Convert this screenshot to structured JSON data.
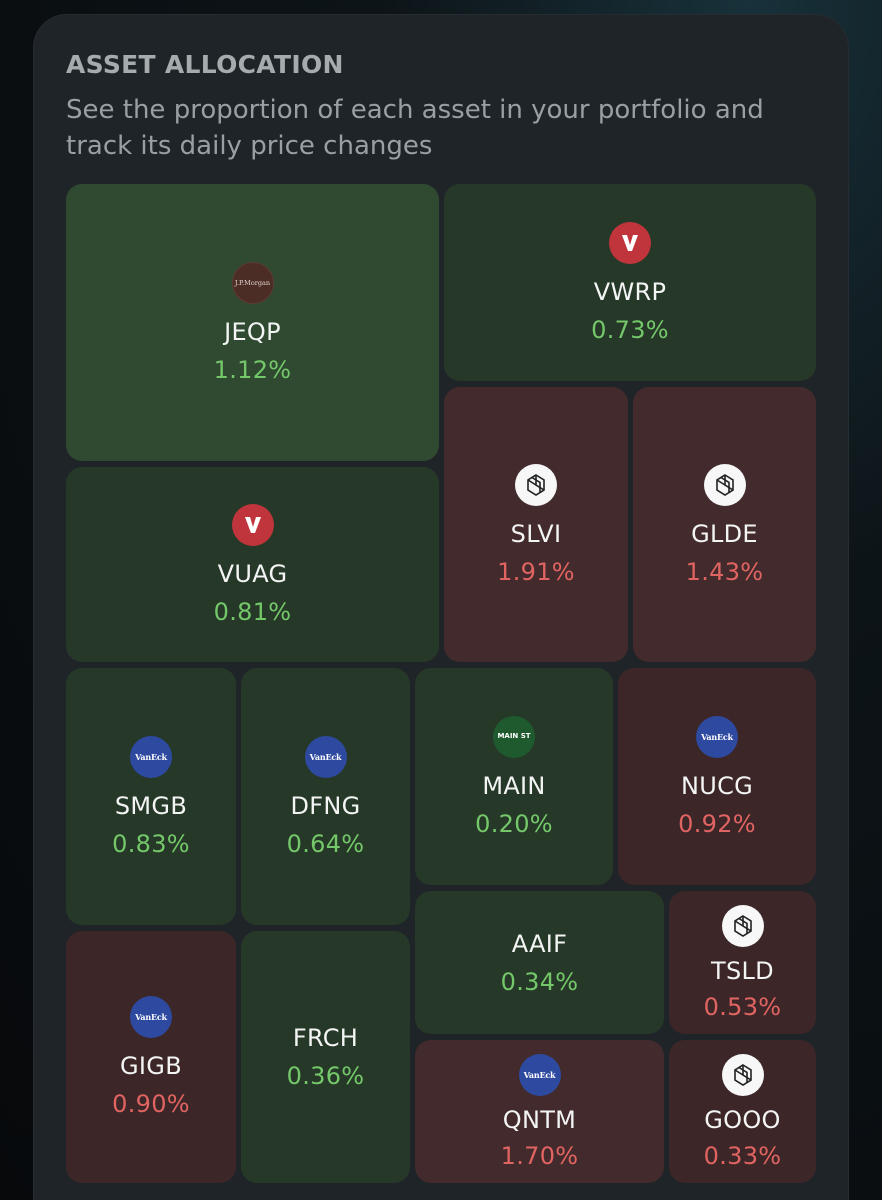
{
  "header": {
    "title": "ASSET ALLOCATION",
    "subtitle": "See the proportion of each asset in your portfolio and track its daily price changes"
  },
  "assets": {
    "jeqp": {
      "ticker": "JEQP",
      "change": "1.12%",
      "logo": "jpmorgan-logo",
      "logo_text": "J.P.Morgan"
    },
    "vwrp": {
      "ticker": "VWRP",
      "change": "0.73%",
      "logo": "vanguard-logo"
    },
    "vuag": {
      "ticker": "VUAG",
      "change": "0.81%",
      "logo": "vanguard-logo"
    },
    "slvi": {
      "ticker": "SLVI",
      "change": "1.91%",
      "logo": "ishares-logo"
    },
    "glde": {
      "ticker": "GLDE",
      "change": "1.43%",
      "logo": "ishares-logo"
    },
    "smgb": {
      "ticker": "SMGB",
      "change": "0.83%",
      "logo": "vaneck-logo",
      "logo_text": "VanEck"
    },
    "dfng": {
      "ticker": "DFNG",
      "change": "0.64%",
      "logo": "vaneck-logo",
      "logo_text": "VanEck"
    },
    "main": {
      "ticker": "MAIN",
      "change": "0.20%",
      "logo": "mainst-logo",
      "logo_text": "MAIN ST"
    },
    "nucg": {
      "ticker": "NUCG",
      "change": "0.92%",
      "logo": "vaneck-logo",
      "logo_text": "VanEck"
    },
    "aaif": {
      "ticker": "AAIF",
      "change": "0.34%"
    },
    "tsld": {
      "ticker": "TSLD",
      "change": "0.53%",
      "logo": "leverage-shares-logo"
    },
    "gigb": {
      "ticker": "GIGB",
      "change": "0.90%",
      "logo": "vaneck-logo",
      "logo_text": "VanEck"
    },
    "frch": {
      "ticker": "FRCH",
      "change": "0.36%"
    },
    "qntm": {
      "ticker": "QNTM",
      "change": "1.70%",
      "logo": "vaneck-logo",
      "logo_text": "VanEck"
    },
    "gooo": {
      "ticker": "GOOO",
      "change": "0.33%",
      "logo": "leverage-shares-logo"
    }
  },
  "colors": {
    "gain": "#74c86a",
    "loss": "#e06461",
    "gain_tile": "#263828",
    "loss_tile": "#3c2628"
  }
}
